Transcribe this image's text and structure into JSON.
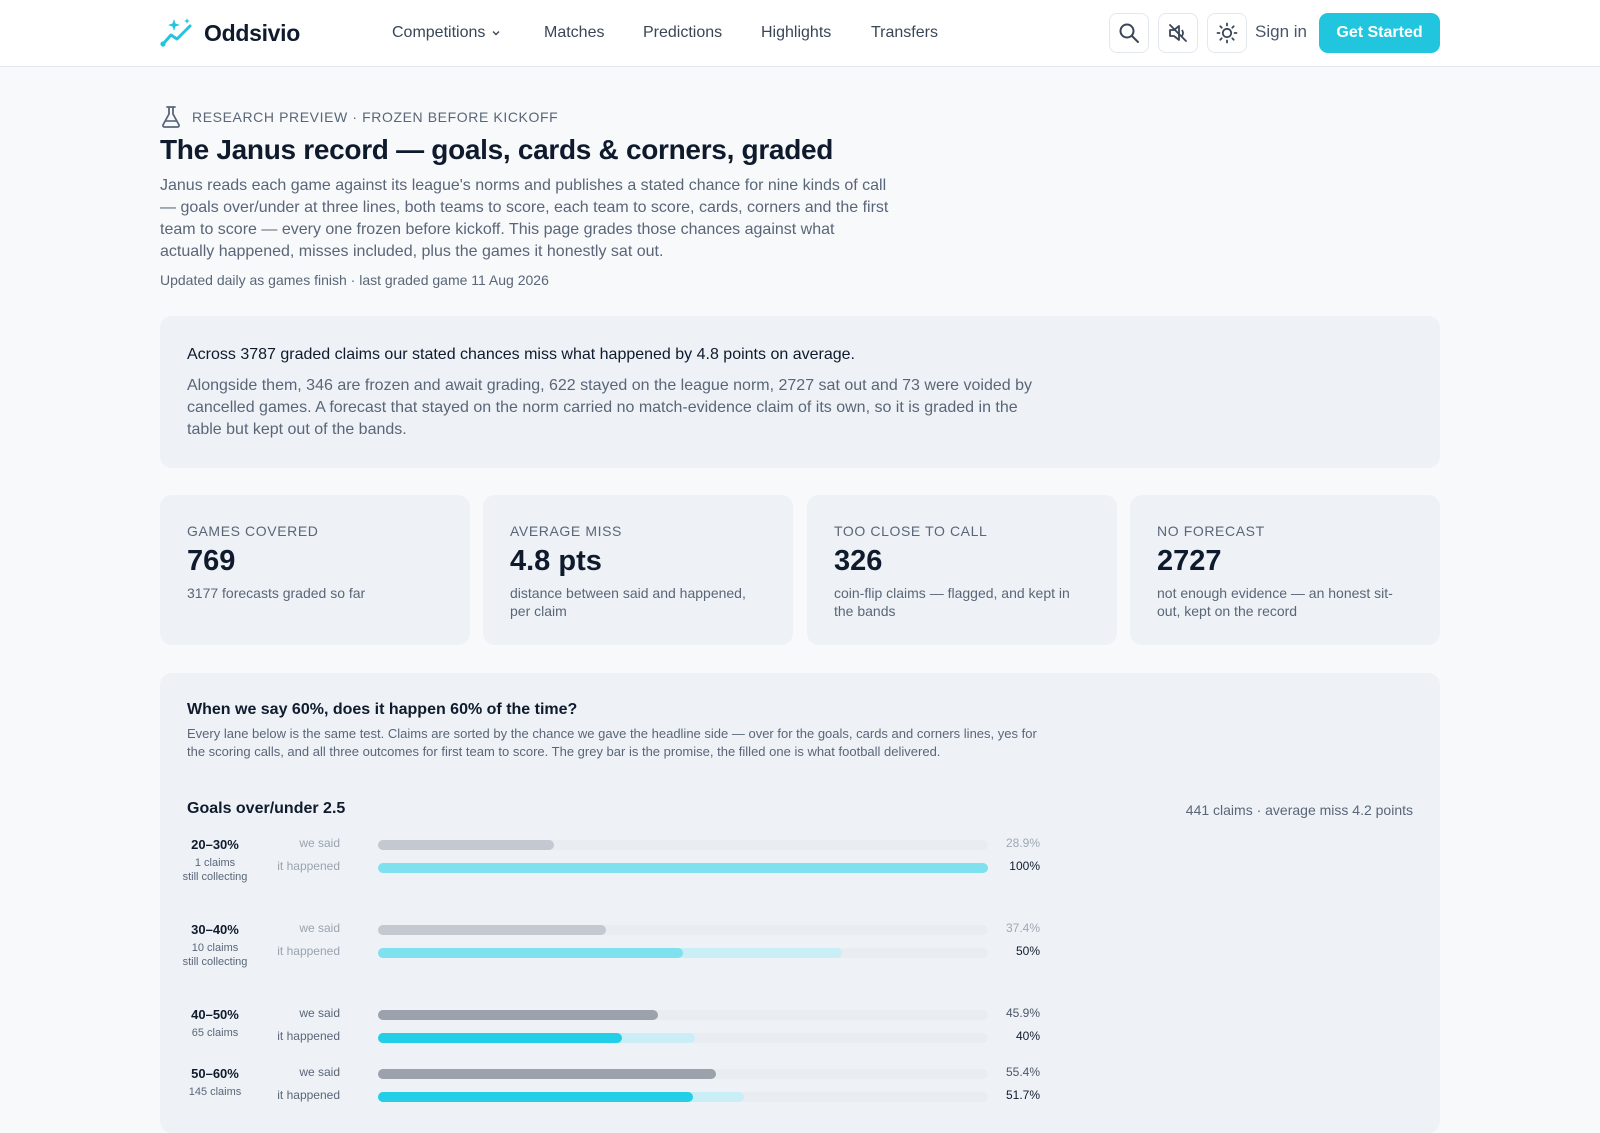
{
  "header": {
    "brand": "Oddsivio",
    "nav": [
      {
        "label": "Competitions",
        "has_menu": true
      },
      {
        "label": "Matches"
      },
      {
        "label": "Predictions"
      },
      {
        "label": "Highlights"
      },
      {
        "label": "Transfers"
      }
    ],
    "icons": [
      "search-icon",
      "sound-off-icon",
      "sun-icon"
    ],
    "sign_in": "Sign in",
    "cta": "Get Started",
    "accent": "#22c5de"
  },
  "intro": {
    "eyebrow": "RESEARCH PREVIEW · FROZEN BEFORE KICKOFF",
    "title": "The Janus record — goals, cards & corners, graded",
    "lede": "Janus reads each game against its league's norms and publishes a stated chance for nine kinds of call — goals over/under at three lines, both teams to score, each team to score, cards, corners and the first team to score — every one frozen before kickoff. This page grades those chances against what actually happened, misses included, plus the games it honestly sat out.",
    "updated": "Updated daily as games finish · last graded game 11 Aug 2026"
  },
  "summary": {
    "headline": "Across 3787 graded claims our stated chances miss what happened by 4.8 points on average.",
    "body": "Alongside them, 346 are frozen and await grading, 622 stayed on the league norm, 2727 sat out and 73 were voided by cancelled games. A forecast that stayed on the norm carried no match-evidence claim of its own, so it is graded in the table but kept out of the bands."
  },
  "stats": [
    {
      "label": "GAMES COVERED",
      "value": "769",
      "sub": "3177 forecasts graded so far"
    },
    {
      "label": "AVERAGE MISS",
      "value": "4.8 pts",
      "sub": "distance between said and happened, per claim"
    },
    {
      "label": "TOO CLOSE TO CALL",
      "value": "326",
      "sub": "coin-flip claims — flagged, and kept in the bands"
    },
    {
      "label": "NO FORECAST",
      "value": "2727",
      "sub": "not enough evidence — an honest sit-out, kept on the record"
    }
  ],
  "calibration": {
    "title": "When we say 60%, does it happen 60% of the time?",
    "description": "Every lane below is the same test. Claims are sorted by the chance we gave the headline side — over for the goals, cards and corners lines, yes for the scoring calls, and all three outcomes for first team to score. The grey bar is the promise, the filled one is what football delivered.",
    "said_label": "we said",
    "happened_label": "it happened",
    "lane": {
      "title": "Goals over/under 2.5",
      "meta": "441 claims · average miss 4.2 points",
      "bands": [
        {
          "range": "20–30%",
          "count": "1 claims",
          "note": "still collecting",
          "said": 28.9,
          "happened": 100,
          "said_label": "28.9%",
          "happened_label": "100%",
          "collecting": true
        },
        {
          "range": "30–40%",
          "count": "10 claims",
          "note": "still collecting",
          "said": 37.4,
          "happened": 50,
          "said_label": "37.4%",
          "happened_label": "50%",
          "collecting": true,
          "spread": [
            50,
            76
          ]
        },
        {
          "range": "40–50%",
          "count": "65 claims",
          "note": "",
          "said": 45.9,
          "happened": 40,
          "said_label": "45.9%",
          "happened_label": "40%",
          "collecting": false,
          "spread": [
            40,
            52
          ]
        },
        {
          "range": "50–60%",
          "count": "145 claims",
          "note": "",
          "said": 55.4,
          "happened": 51.7,
          "said_label": "55.4%",
          "happened_label": "51.7%",
          "collecting": false,
          "spread": [
            51.7,
            60
          ]
        }
      ]
    }
  }
}
